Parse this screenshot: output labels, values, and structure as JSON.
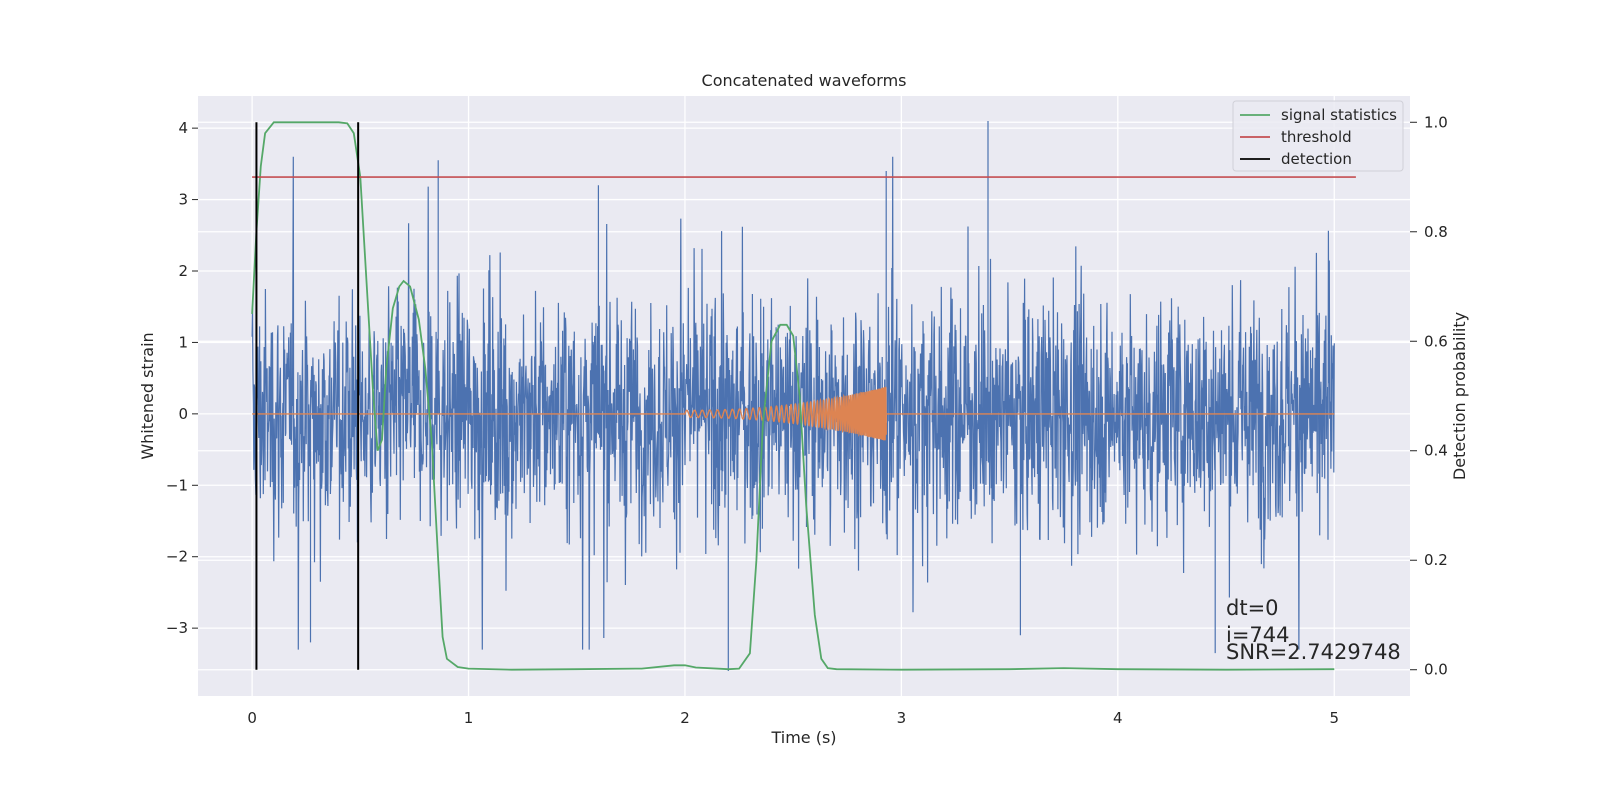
{
  "chart_data": {
    "type": "line",
    "title": "Concatenated waveforms",
    "xlabel": "Time (s)",
    "ylabel": "Whitened strain",
    "y2label": "Detection probability",
    "xlim": [
      -0.25,
      5.35
    ],
    "ylim": [
      -3.95,
      4.45
    ],
    "y2lim": [
      -0.048,
      1.048
    ],
    "xticks": [
      "0",
      "1",
      "2",
      "3",
      "4",
      "5"
    ],
    "yticks": [
      "−3",
      "−2",
      "−1",
      "0",
      "1",
      "2",
      "3",
      "4"
    ],
    "y2ticks": [
      "0.0",
      "0.2",
      "0.4",
      "0.6",
      "0.8",
      "1.0"
    ],
    "grid": true,
    "legend_position": "top-right",
    "colors": {
      "background": "#eaeaf2",
      "strain": "#4c72b0",
      "template": "#dd8452",
      "signal_statistics": "#55a868",
      "threshold": "#c44e52",
      "detection": "#000000"
    },
    "series": [
      {
        "name": "signal statistics",
        "axis": "right",
        "x": [
          0.0,
          0.02,
          0.04,
          0.06,
          0.1,
          0.2,
          0.3,
          0.4,
          0.44,
          0.47,
          0.5,
          0.53,
          0.56,
          0.58,
          0.6,
          0.62,
          0.65,
          0.68,
          0.7,
          0.73,
          0.77,
          0.8,
          0.83,
          0.86,
          0.88,
          0.9,
          0.95,
          1.0,
          1.2,
          1.5,
          1.8,
          1.95,
          2.0,
          2.05,
          2.2,
          2.25,
          2.3,
          2.33,
          2.36,
          2.4,
          2.44,
          2.47,
          2.5,
          2.53,
          2.56,
          2.6,
          2.63,
          2.66,
          2.7,
          3.0,
          3.5,
          3.75,
          4.0,
          4.5,
          5.0
        ],
        "y": [
          0.65,
          0.8,
          0.92,
          0.98,
          1.0,
          1.0,
          1.0,
          1.0,
          0.998,
          0.98,
          0.9,
          0.7,
          0.5,
          0.4,
          0.42,
          0.55,
          0.66,
          0.7,
          0.71,
          0.7,
          0.64,
          0.55,
          0.42,
          0.2,
          0.06,
          0.02,
          0.005,
          0.002,
          0.0,
          0.001,
          0.002,
          0.008,
          0.008,
          0.004,
          0.001,
          0.002,
          0.03,
          0.2,
          0.45,
          0.6,
          0.63,
          0.63,
          0.61,
          0.5,
          0.3,
          0.1,
          0.02,
          0.003,
          0.001,
          0.0,
          0.001,
          0.003,
          0.001,
          0.0,
          0.001
        ]
      },
      {
        "name": "threshold",
        "axis": "right",
        "x": [
          0.0,
          5.1
        ],
        "y": [
          0.9,
          0.9
        ]
      },
      {
        "name": "detection",
        "axis": "right",
        "x": [
          0.02,
          0.49
        ],
        "y": [
          0.0,
          1.0
        ]
      },
      {
        "name": "",
        "axis": "left",
        "x_range": [
          0.0,
          5.0
        ],
        "y_range": [
          -3.6,
          4.1
        ],
        "peaks": [
          [
            0.86,
            3.55
          ],
          [
            1.6,
            3.2
          ],
          [
            2.93,
            3.4
          ],
          [
            3.4,
            4.1
          ],
          [
            0.27,
            -3.2
          ],
          [
            2.2,
            -3.6
          ],
          [
            3.55,
            -3.1
          ],
          [
            4.45,
            -3.35
          ]
        ]
      },
      {
        "name": "",
        "axis": "left",
        "x_range": [
          2.0,
          2.93
        ],
        "y_peak": 0.38
      }
    ],
    "annotations": [
      "dt=0",
      "i=744",
      "SNR=2.7429748"
    ],
    "legend": [
      "signal statistics",
      "threshold",
      "detection"
    ]
  }
}
